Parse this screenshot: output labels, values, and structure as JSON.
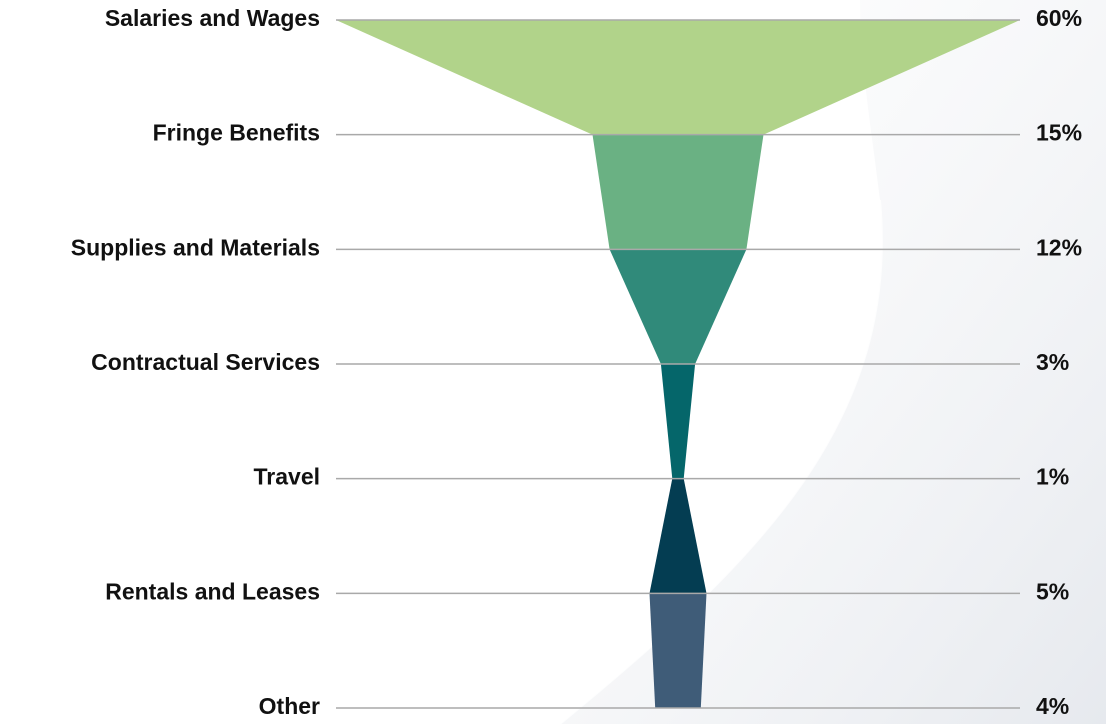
{
  "chart_data": {
    "type": "funnel",
    "categories": [
      "Salaries and Wages",
      "Fringe Benefits",
      "Supplies and Materials",
      "Contractual Services",
      "Travel",
      "Rentals and Leases",
      "Other"
    ],
    "values": [
      60,
      15,
      12,
      3,
      1,
      5,
      4
    ],
    "value_labels": [
      "60%",
      "15%",
      "12%",
      "3%",
      "1%",
      "5%",
      "4%"
    ],
    "colors": [
      "#b1d38a",
      "#6ab183",
      "#308a7a",
      "#05666a",
      "#043d52",
      "#3f5c78"
    ]
  }
}
